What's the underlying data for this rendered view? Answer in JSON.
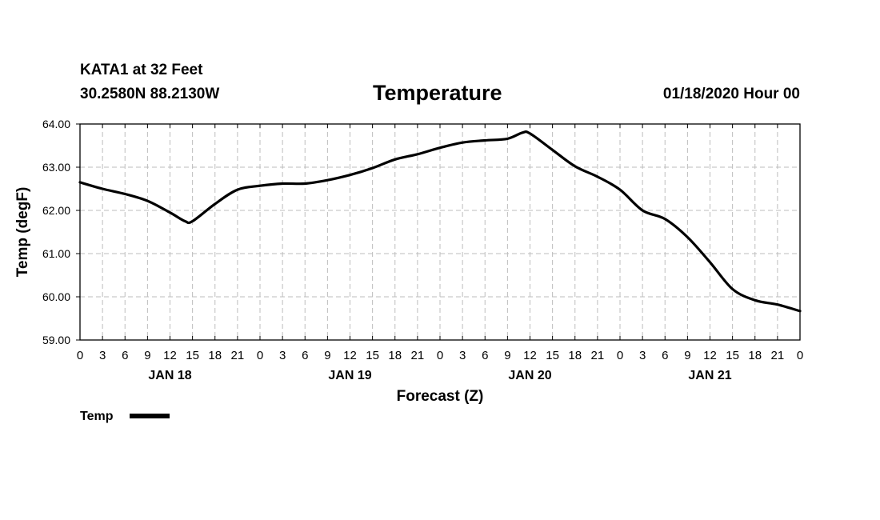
{
  "header": {
    "station": "KATA1 at 32 Feet",
    "coords": "30.2580N 88.2130W",
    "title": "Temperature",
    "runtime": "01/18/2020 Hour 00"
  },
  "chart_data": {
    "type": "line",
    "title": "Temperature",
    "xlabel": "Forecast (Z)",
    "ylabel": "Temp (degF)",
    "ylim": [
      59.0,
      64.0
    ],
    "xlim": [
      0,
      96
    ],
    "grid": true,
    "y_ticks": [
      "59.00",
      "60.00",
      "61.00",
      "62.00",
      "63.00",
      "64.00"
    ],
    "x_tick_labels": [
      "0",
      "3",
      "6",
      "9",
      "12",
      "15",
      "18",
      "21",
      "0",
      "3",
      "6",
      "9",
      "12",
      "15",
      "18",
      "21",
      "0",
      "3",
      "6",
      "9",
      "12",
      "15",
      "18",
      "21",
      "0",
      "3",
      "6",
      "9",
      "12",
      "15",
      "18",
      "21",
      "0"
    ],
    "date_labels": [
      {
        "hour": 12,
        "label": "JAN 18"
      },
      {
        "hour": 36,
        "label": "JAN 19"
      },
      {
        "hour": 60,
        "label": "JAN 20"
      },
      {
        "hour": 84,
        "label": "JAN 21"
      }
    ],
    "legend": [
      {
        "name": "Temp",
        "color": "#000000"
      }
    ],
    "series": [
      {
        "name": "Temp",
        "color": "#000000",
        "x": [
          0,
          3,
          6,
          9,
          12,
          14,
          15,
          18,
          21,
          24,
          27,
          30,
          33,
          36,
          39,
          42,
          45,
          48,
          51,
          54,
          57,
          59,
          60,
          63,
          66,
          69,
          72,
          75,
          78,
          81,
          84,
          87,
          90,
          93,
          96
        ],
        "y": [
          62.65,
          62.5,
          62.38,
          62.22,
          61.95,
          61.75,
          61.75,
          62.15,
          62.48,
          62.57,
          62.62,
          62.62,
          62.7,
          62.82,
          62.98,
          63.18,
          63.3,
          63.45,
          63.57,
          63.62,
          63.66,
          63.8,
          63.78,
          63.4,
          63.02,
          62.78,
          62.48,
          62.0,
          61.8,
          61.38,
          60.8,
          60.18,
          59.92,
          59.82,
          59.67
        ]
      }
    ]
  }
}
